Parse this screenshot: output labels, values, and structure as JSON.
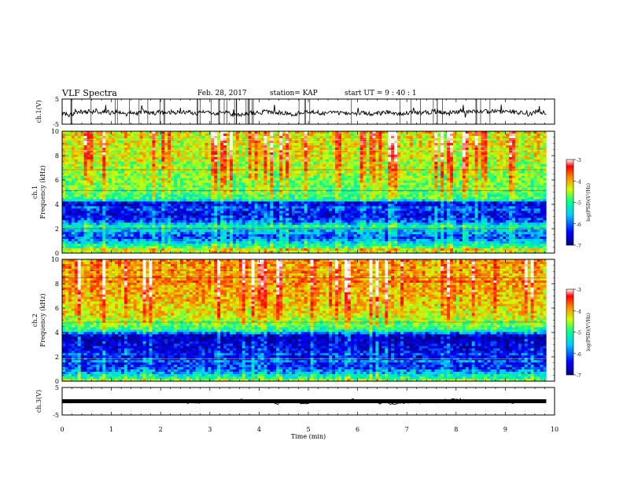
{
  "header": {
    "title": "VLF Spectra",
    "date": "Feb. 28, 2017",
    "station": "station= KAP",
    "start": "start  UT =  9 : 40 : 1"
  },
  "chart_data": [
    {
      "type": "line",
      "panel": "ch1-waveform",
      "ylabel": "ch.1(V)",
      "ylim": [
        -5,
        5
      ],
      "yticks": [
        "5",
        "-5"
      ],
      "x_range": [
        0,
        9.83
      ],
      "baseline": -0.5,
      "noise_amplitude": 1.6,
      "color": "#000000"
    },
    {
      "type": "heatmap",
      "panel": "ch1-spectrogram",
      "ylabel": "Frequency (kHz)",
      "channel_label": "ch.1",
      "ylim": [
        0,
        10
      ],
      "yticks": [
        "0",
        "2",
        "4",
        "6",
        "8",
        "10"
      ],
      "x_range": [
        0,
        9.83
      ],
      "levels_by_frequency": [
        {
          "f": 0.0,
          "level": -4.6
        },
        {
          "f": 0.8,
          "level": -5.6
        },
        {
          "f": 1.3,
          "level": -6.3
        },
        {
          "f": 2.2,
          "level": -5.4
        },
        {
          "f": 2.6,
          "level": -6.2
        },
        {
          "f": 3.2,
          "level": -6.6
        },
        {
          "f": 3.7,
          "level": -6.2
        },
        {
          "f": 4.1,
          "level": -6.8
        },
        {
          "f": 4.4,
          "level": -5.2
        },
        {
          "f": 5.6,
          "level": -5.0
        },
        {
          "f": 7.5,
          "level": -4.7
        },
        {
          "f": 10.0,
          "level": -4.5
        }
      ],
      "colorbar": {
        "label": "log(PSD)(V²/Hz)",
        "ticks": [
          "-3",
          "-4",
          "-5",
          "-6",
          "-7"
        ],
        "range": [
          -7,
          -3
        ]
      }
    },
    {
      "type": "heatmap",
      "panel": "ch2-spectrogram",
      "ylabel": "Frequency (kHz)",
      "channel_label": "ch.2",
      "ylim": [
        0,
        10
      ],
      "yticks": [
        "0",
        "2",
        "4",
        "6",
        "8",
        "10"
      ],
      "x_range": [
        0,
        9.83
      ],
      "levels_by_frequency": [
        {
          "f": 0.0,
          "level": -4.8
        },
        {
          "f": 0.5,
          "level": -5.6
        },
        {
          "f": 1.0,
          "level": -6.3
        },
        {
          "f": 2.0,
          "level": -6.5
        },
        {
          "f": 3.0,
          "level": -6.6
        },
        {
          "f": 3.7,
          "level": -6.8
        },
        {
          "f": 4.2,
          "level": -5.3
        },
        {
          "f": 5.5,
          "level": -4.6
        },
        {
          "f": 7.5,
          "level": -4.3
        },
        {
          "f": 10.0,
          "level": -4.2
        }
      ],
      "colorbar": {
        "label": "log(PSD)(V²/Hz)",
        "ticks": [
          "-3",
          "-4",
          "-5",
          "-6",
          "-7"
        ],
        "range": [
          -7,
          -3
        ]
      }
    },
    {
      "type": "line",
      "panel": "ch3-waveform",
      "ylabel": "ch.3(V)",
      "ylim": [
        -5,
        5
      ],
      "yticks": [
        "5",
        "-5"
      ],
      "x_range": [
        0,
        9.83
      ],
      "baseline": 0,
      "noise_amplitude": 0.3,
      "color": "#000000"
    }
  ],
  "xaxis": {
    "label": "Time (min)",
    "range": [
      0,
      10
    ],
    "ticks": [
      "0",
      "1",
      "2",
      "3",
      "4",
      "5",
      "6",
      "7",
      "8",
      "9",
      "10"
    ]
  },
  "colors": {
    "colormap": [
      "#000080",
      "#0000ff",
      "#00c8ff",
      "#00ff90",
      "#d0ff00",
      "#ff8000",
      "#ff0000",
      "#ffffff"
    ],
    "axis": "#000000",
    "background": "#ffffff"
  }
}
